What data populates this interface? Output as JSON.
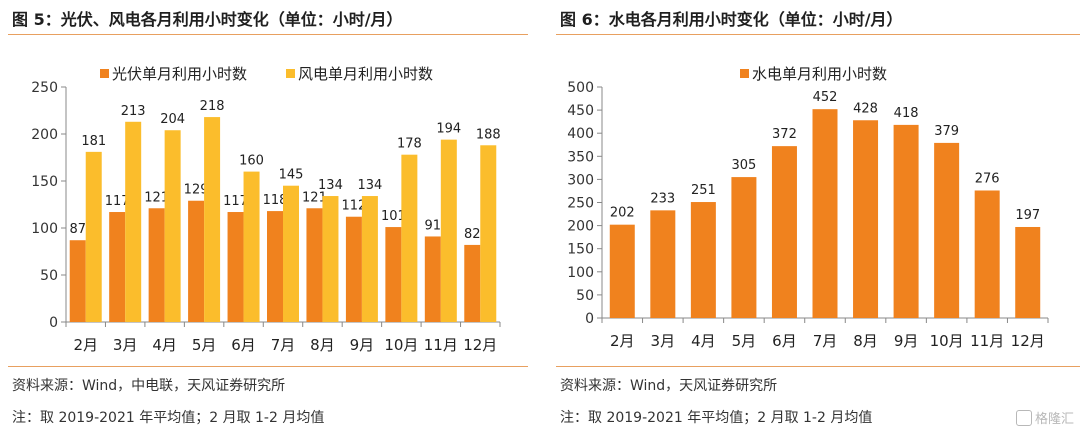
{
  "left": {
    "title": "图 5：光伏、风电各月利用小时变化（单位：小时/月）",
    "source": "资料来源：Wind，中电联，天风证券研究所",
    "note": "注：取 2019-2021 年平均值；2 月取 1-2 月均值"
  },
  "right": {
    "title": "图 6：水电各月利用小时变化（单位：小时/月）",
    "source": "资料来源：Wind，天风证券研究所",
    "note": "注：取 2019-2021 年平均值；2 月取 1-2 月均值"
  },
  "watermark": "格隆汇",
  "chart_data": [
    {
      "type": "bar",
      "categories": [
        "2月",
        "3月",
        "4月",
        "5月",
        "6月",
        "7月",
        "8月",
        "9月",
        "10月",
        "11月",
        "12月"
      ],
      "series": [
        {
          "name": "光伏单月利用小时数",
          "color": "#f0821e",
          "values": [
            87,
            117,
            121,
            129,
            117,
            118,
            121,
            112,
            101,
            91,
            82
          ]
        },
        {
          "name": "风电单月利用小时数",
          "color": "#fbbd2c",
          "values": [
            181,
            213,
            204,
            218,
            160,
            145,
            134,
            134,
            178,
            194,
            188
          ]
        }
      ],
      "ylim": [
        0,
        250
      ],
      "yticks": [
        0,
        50,
        100,
        150,
        200,
        250
      ],
      "legend": "top"
    },
    {
      "type": "bar",
      "categories": [
        "2月",
        "3月",
        "4月",
        "5月",
        "6月",
        "7月",
        "8月",
        "9月",
        "10月",
        "11月",
        "12月"
      ],
      "series": [
        {
          "name": "水电单月利用小时数",
          "color": "#f0821e",
          "values": [
            202,
            233,
            251,
            305,
            372,
            452,
            428,
            418,
            379,
            276,
            197
          ]
        }
      ],
      "ylim": [
        0,
        500
      ],
      "yticks": [
        0,
        50,
        100,
        150,
        200,
        250,
        300,
        350,
        400,
        450,
        500
      ],
      "legend": "top"
    }
  ]
}
